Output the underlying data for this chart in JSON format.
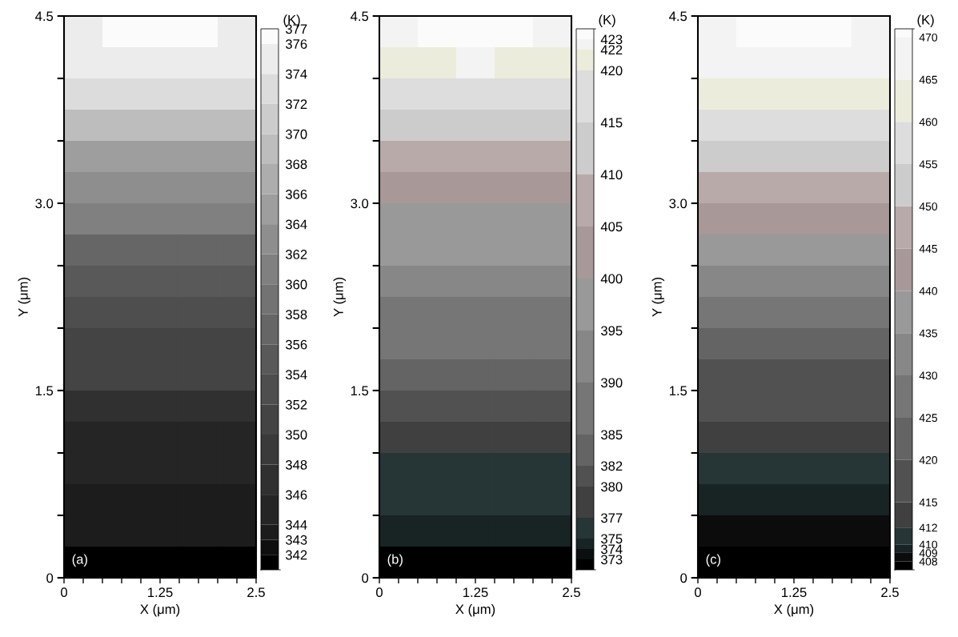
{
  "chart_data": [
    {
      "type": "heatmap",
      "xlabel": "X (μm)",
      "ylabel": "Y (μm)",
      "clabel": "(K)",
      "annotations": [
        "(a)"
      ],
      "x": [
        0.25,
        0.75,
        1.25,
        1.75,
        2.25
      ],
      "y": [
        4.375,
        4.125,
        3.875,
        3.625,
        3.375,
        3.125,
        2.875,
        2.625,
        2.375,
        2.125,
        1.875,
        1.625,
        1.375,
        1.125,
        0.875,
        0.625,
        0.375,
        0.125
      ],
      "xlim": [
        0,
        2.5
      ],
      "ylim": [
        0,
        4.5
      ],
      "xticks": [
        0,
        {
          "value": 0.25,
          "label": null
        },
        {
          "value": 0.5,
          "label": null
        },
        {
          "value": 0.75,
          "label": null
        },
        {
          "value": 1.0,
          "label": null
        },
        1.25,
        {
          "value": 1.5,
          "label": null
        },
        {
          "value": 1.75,
          "label": null
        },
        {
          "value": 2.0,
          "label": null
        },
        {
          "value": 2.25,
          "label": null
        },
        2.5
      ],
      "yticks": [
        0,
        {
          "value": 0.5,
          "label": null
        },
        {
          "value": 1.0,
          "label": null
        },
        1.5,
        {
          "value": 2.0,
          "label": null
        },
        {
          "value": 2.5,
          "label": null
        },
        {
          "value": 3,
          "label": "3.0"
        },
        {
          "value": 3.5,
          "label": null
        },
        {
          "value": 4.0,
          "label": null
        },
        4.5
      ],
      "clim": [
        341,
        377
      ],
      "cticks": [
        342,
        343,
        344,
        346,
        348,
        350,
        352,
        354,
        356,
        358,
        360,
        362,
        364,
        366,
        368,
        370,
        372,
        374,
        376,
        377
      ],
      "colors": [
        "#000000",
        "#0f0f0f",
        "#1c1c1c",
        "#252525",
        "#303030",
        "#3a3a3a",
        "#444444",
        "#4e4e4e",
        "#595959",
        "#666666",
        "#737373",
        "#808080",
        "#8e8e8e",
        "#9e9e9e",
        "#adadad",
        "#bdbdbd",
        "#cccccc",
        "#dcdcdc",
        "#ececec",
        "#fbfbfb"
      ],
      "cells": [
        [
          374,
          376,
          376,
          376,
          374
        ],
        [
          374,
          374,
          374,
          374,
          374
        ],
        [
          372,
          372,
          372,
          372,
          372
        ],
        [
          368,
          368,
          368,
          368,
          368
        ],
        [
          364,
          364,
          364,
          364,
          364
        ],
        [
          362,
          362,
          362,
          362,
          362
        ],
        [
          360,
          360,
          360,
          360,
          360
        ],
        [
          356,
          356,
          356,
          356,
          356
        ],
        [
          354,
          354,
          354,
          354,
          354
        ],
        [
          352,
          352,
          352,
          352,
          352
        ],
        [
          350,
          350,
          350,
          350,
          350
        ],
        [
          350,
          350,
          350,
          350,
          350
        ],
        [
          346,
          346,
          346,
          346,
          346
        ],
        [
          344,
          344,
          344,
          344,
          344
        ],
        [
          344,
          344,
          344,
          344,
          344
        ],
        [
          343,
          343,
          343,
          343,
          343
        ],
        [
          343,
          343,
          343,
          343,
          343
        ],
        [
          341,
          341,
          341,
          341,
          341
        ]
      ],
      "grid": false
    },
    {
      "type": "heatmap",
      "xlabel": "X (μm)",
      "ylabel": "Y (μm)",
      "clabel": "(K)",
      "annotations": [
        "(b)"
      ],
      "x": [
        0.25,
        0.75,
        1.25,
        1.75,
        2.25
      ],
      "y": [
        4.375,
        4.125,
        3.875,
        3.625,
        3.375,
        3.125,
        2.875,
        2.625,
        2.375,
        2.125,
        1.875,
        1.625,
        1.375,
        1.125,
        0.875,
        0.625,
        0.375,
        0.125
      ],
      "xlim": [
        0,
        2.5
      ],
      "ylim": [
        0,
        4.5
      ],
      "xticks": [
        0,
        {
          "value": 0.25,
          "label": null
        },
        {
          "value": 0.5,
          "label": null
        },
        {
          "value": 0.75,
          "label": null
        },
        {
          "value": 1.0,
          "label": null
        },
        1.25,
        {
          "value": 1.5,
          "label": null
        },
        {
          "value": 1.75,
          "label": null
        },
        {
          "value": 2.0,
          "label": null
        },
        {
          "value": 2.25,
          "label": null
        },
        2.5
      ],
      "yticks": [
        0,
        {
          "value": 0.5,
          "label": null
        },
        {
          "value": 1.0,
          "label": null
        },
        1.5,
        {
          "value": 2.0,
          "label": null
        },
        {
          "value": 2.5,
          "label": null
        },
        {
          "value": 3,
          "label": "3.0"
        },
        {
          "value": 3.5,
          "label": null
        },
        {
          "value": 4.0,
          "label": null
        },
        4.5
      ],
      "clim": [
        372,
        424
      ],
      "cticks": [
        373,
        374,
        375,
        377,
        380,
        382,
        385,
        390,
        395,
        400,
        405,
        410,
        415,
        420,
        422,
        423
      ],
      "colors": [
        "#000000",
        "#0b0f0f",
        "#172423",
        "#263636",
        "#404040",
        "#515151",
        "#646464",
        "#767676",
        "#878787",
        "#999999",
        "#a89898",
        "#b9aaaa",
        "#cccccc",
        "#dddddd",
        "#ececdc",
        "#f3f3f3",
        "#fbfbfb"
      ],
      "cells": [
        [
          422,
          423,
          423,
          423,
          422
        ],
        [
          420,
          420,
          422,
          420,
          420
        ],
        [
          415,
          415,
          415,
          415,
          415
        ],
        [
          410,
          410,
          410,
          410,
          410
        ],
        [
          405,
          405,
          405,
          405,
          405
        ],
        [
          400,
          400,
          400,
          400,
          400
        ],
        [
          395,
          395,
          395,
          395,
          395
        ],
        [
          395,
          395,
          395,
          395,
          395
        ],
        [
          390,
          390,
          390,
          390,
          390
        ],
        [
          385,
          385,
          385,
          385,
          385
        ],
        [
          385,
          385,
          385,
          385,
          385
        ],
        [
          382,
          382,
          382,
          382,
          382
        ],
        [
          380,
          380,
          380,
          380,
          380
        ],
        [
          377,
          377,
          377,
          377,
          377
        ],
        [
          375,
          375,
          375,
          375,
          375
        ],
        [
          375,
          375,
          375,
          375,
          375
        ],
        [
          374,
          374,
          374,
          374,
          374
        ],
        [
          372,
          372,
          372,
          372,
          372
        ]
      ],
      "grid": false
    },
    {
      "type": "heatmap",
      "xlabel": "X (μm)",
      "ylabel": "Y (μm)",
      "clabel": "(K)",
      "annotations": [
        "(c)"
      ],
      "x": [
        0.25,
        0.75,
        1.25,
        1.75,
        2.25
      ],
      "y": [
        4.375,
        4.125,
        3.875,
        3.625,
        3.375,
        3.125,
        2.875,
        2.625,
        2.375,
        2.125,
        1.875,
        1.625,
        1.375,
        1.125,
        0.875,
        0.625,
        0.375,
        0.125
      ],
      "xlim": [
        0,
        2.5
      ],
      "ylim": [
        0,
        4.5
      ],
      "xticks": [
        0,
        {
          "value": 0.25,
          "label": null
        },
        {
          "value": 0.5,
          "label": null
        },
        {
          "value": 0.75,
          "label": null
        },
        {
          "value": 1.0,
          "label": null
        },
        1.25,
        {
          "value": 1.5,
          "label": null
        },
        {
          "value": 1.75,
          "label": null
        },
        {
          "value": 2.0,
          "label": null
        },
        {
          "value": 2.25,
          "label": null
        },
        2.5
      ],
      "yticks": [
        0,
        {
          "value": 0.5,
          "label": null
        },
        {
          "value": 1.0,
          "label": null
        },
        1.5,
        {
          "value": 2.0,
          "label": null
        },
        {
          "value": 2.5,
          "label": null
        },
        {
          "value": 3,
          "label": "3.0"
        },
        {
          "value": 3.5,
          "label": null
        },
        {
          "value": 4.0,
          "label": null
        },
        4.5
      ],
      "clim": [
        407,
        471
      ],
      "cticks": [
        408,
        409,
        410,
        412,
        415,
        420,
        425,
        430,
        435,
        440,
        445,
        450,
        455,
        460,
        465,
        470
      ],
      "colors": [
        "#000000",
        "#0c0c0c",
        "#172423",
        "#263636",
        "#404040",
        "#515151",
        "#646464",
        "#767676",
        "#878787",
        "#999999",
        "#a89898",
        "#b9aaaa",
        "#cccccc",
        "#dddddd",
        "#ececdc",
        "#f3f3f3",
        "#fbfbfb"
      ],
      "cells": [
        [
          465,
          470,
          470,
          470,
          465
        ],
        [
          465,
          465,
          465,
          465,
          465
        ],
        [
          460,
          460,
          460,
          460,
          460
        ],
        [
          455,
          455,
          455,
          455,
          455
        ],
        [
          450,
          450,
          450,
          450,
          450
        ],
        [
          445,
          445,
          445,
          445,
          445
        ],
        [
          440,
          440,
          440,
          440,
          440
        ],
        [
          435,
          435,
          435,
          435,
          435
        ],
        [
          430,
          430,
          430,
          430,
          430
        ],
        [
          425,
          425,
          425,
          425,
          425
        ],
        [
          420,
          420,
          420,
          420,
          420
        ],
        [
          415,
          415,
          415,
          415,
          415
        ],
        [
          415,
          415,
          415,
          415,
          415
        ],
        [
          412,
          412,
          412,
          412,
          412
        ],
        [
          410,
          410,
          410,
          410,
          410
        ],
        [
          409,
          409,
          409,
          409,
          409
        ],
        [
          408,
          408,
          408,
          408,
          408
        ],
        [
          407,
          407,
          407,
          407,
          407
        ]
      ],
      "grid": false
    }
  ]
}
